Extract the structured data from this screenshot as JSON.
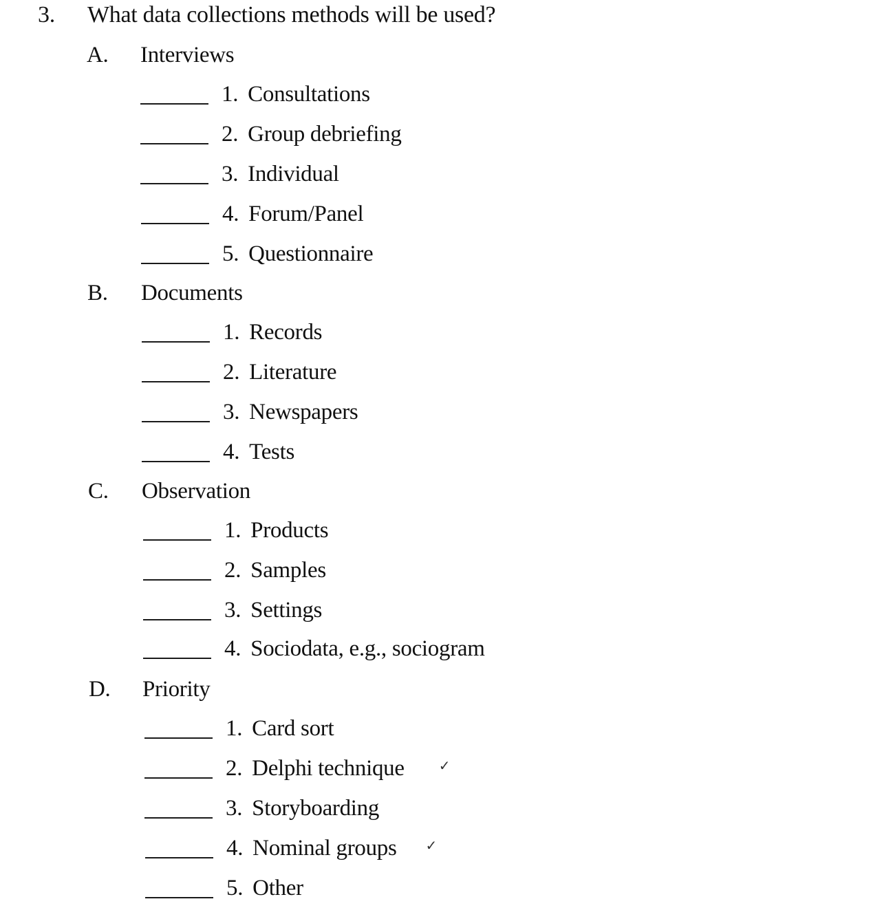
{
  "question": {
    "number": "3.",
    "text": "What data collections methods will be used?"
  },
  "sections": [
    {
      "letter": "A.",
      "title": "Interviews",
      "items": [
        {
          "num": "1.",
          "label": "Consultations"
        },
        {
          "num": "2.",
          "label": "Group debriefing"
        },
        {
          "num": "3.",
          "label": "Individual"
        },
        {
          "num": "4.",
          "label": "Forum/Panel"
        },
        {
          "num": "5.",
          "label": "Questionnaire"
        }
      ]
    },
    {
      "letter": "B.",
      "title": "Documents",
      "items": [
        {
          "num": "1.",
          "label": "Records"
        },
        {
          "num": "2.",
          "label": "Literature"
        },
        {
          "num": "3.",
          "label": "Newspapers"
        },
        {
          "num": "4.",
          "label": "Tests"
        }
      ]
    },
    {
      "letter": "C.",
      "title": "Observation",
      "items": [
        {
          "num": "1.",
          "label": "Products"
        },
        {
          "num": "2.",
          "label": "Samples"
        },
        {
          "num": "3.",
          "label": "Settings"
        },
        {
          "num": "4.",
          "label": "Sociodata, e.g., sociogram"
        }
      ]
    },
    {
      "letter": "D.",
      "title": "Priority",
      "items": [
        {
          "num": "1.",
          "label": "Card sort"
        },
        {
          "num": "2.",
          "label": "Delphi technique",
          "mark": "✓"
        },
        {
          "num": "3.",
          "label": "Storyboarding"
        },
        {
          "num": "4.",
          "label": "Nominal groups",
          "mark": "✓"
        },
        {
          "num": "5.",
          "label": "Other"
        }
      ]
    }
  ]
}
